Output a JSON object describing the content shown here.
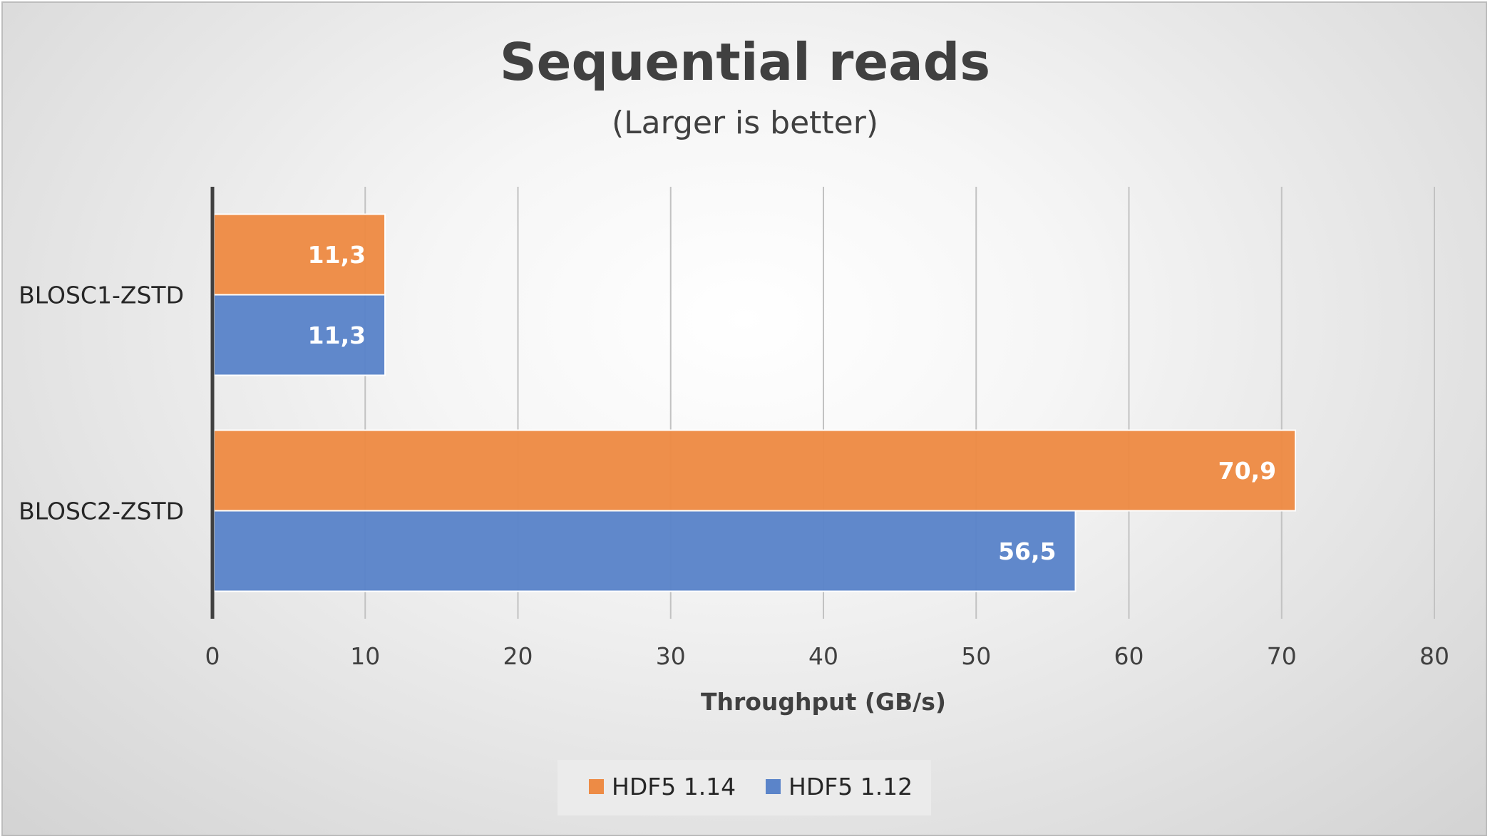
{
  "chart_data": {
    "type": "bar",
    "orientation": "horizontal",
    "title": "Sequential reads",
    "subtitle": "(Larger is better)",
    "xlabel": "Throughput (GB/s)",
    "ylabel": "",
    "xlim": [
      0,
      80
    ],
    "xticks": [
      "0",
      "10",
      "20",
      "30",
      "40",
      "50",
      "60",
      "70",
      "80"
    ],
    "categories": [
      "BLOSC1-ZSTD",
      "BLOSC2-ZSTD"
    ],
    "series": [
      {
        "name": "HDF5 1.14",
        "color": "#ED8B45",
        "values": [
          11.3,
          70.9
        ],
        "labels": [
          "11,3",
          "70,9"
        ]
      },
      {
        "name": "HDF5 1.12",
        "color": "#5B84C9",
        "values": [
          11.3,
          56.5
        ],
        "labels": [
          "11,3",
          "56,5"
        ]
      }
    ],
    "grid": true,
    "legend_position": "bottom"
  }
}
